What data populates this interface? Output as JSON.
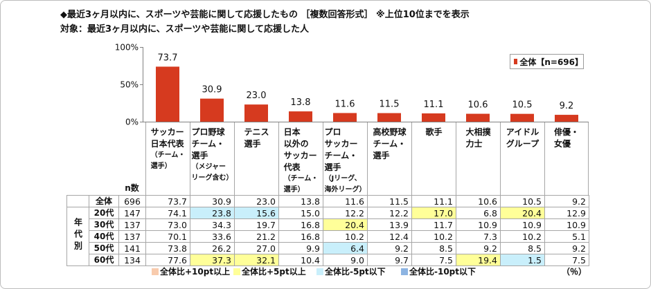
{
  "title": "◆最近3ヶ月以内に、スポーツや芸能に関して応援したもの ［複数回答形式］ ※上位10位までを表示",
  "subtitle": "対象：最近3ヶ月以内に、スポーツや芸能に関して応援した人",
  "chart_data": {
    "type": "bar",
    "categories": [
      "サッカー\n日本代表",
      "プロ野球\nチーム・\n選手",
      "テニス\n選手",
      "日本\n以外の\nサッカー\n代表",
      "プロ\nサッカー\nチーム・\n選手",
      "高校野球\nチーム・\n選手",
      "歌手",
      "大相撲\n力士",
      "アイドル\nグループ",
      "俳優・\n女優"
    ],
    "category_notes": [
      "（チーム・\n選手）",
      "（メジャー\nリーグ含む）",
      "",
      "（チーム・\n選手）",
      "（Jリーグ、\n海外リーグ）",
      "",
      "",
      "",
      "",
      ""
    ],
    "series": [
      {
        "name": "全体【n=696】",
        "color": "#d63a1f",
        "values": [
          73.7,
          30.9,
          23.0,
          13.8,
          11.6,
          11.5,
          11.1,
          10.6,
          10.5,
          9.2
        ]
      }
    ],
    "y_ticks": [
      {
        "value": 100,
        "label": "100%"
      },
      {
        "value": 50,
        "label": "50%"
      },
      {
        "value": 0,
        "label": "0%"
      }
    ],
    "ylim": [
      0,
      100
    ],
    "legend_position": "top-right",
    "grid": false
  },
  "table": {
    "n_header": "n数",
    "group_label": "年代別",
    "total_row": {
      "label": "全体",
      "n": 696,
      "values": [
        "73.7",
        "30.9",
        "23.0",
        "13.8",
        "11.6",
        "11.5",
        "11.1",
        "10.6",
        "10.5",
        "9.2"
      ]
    },
    "age_rows": [
      {
        "label": "20代",
        "n": 147,
        "values": [
          "74.1",
          "23.8",
          "15.6",
          "15.0",
          "12.2",
          "12.2",
          "17.0",
          "6.8",
          "20.4",
          "12.9"
        ]
      },
      {
        "label": "30代",
        "n": 137,
        "values": [
          "73.0",
          "34.3",
          "19.7",
          "16.8",
          "20.4",
          "13.9",
          "11.7",
          "10.9",
          "10.9",
          "10.9"
        ]
      },
      {
        "label": "40代",
        "n": 137,
        "values": [
          "70.1",
          "33.6",
          "21.2",
          "16.8",
          "10.2",
          "12.4",
          "10.2",
          "7.3",
          "10.2",
          "5.1"
        ]
      },
      {
        "label": "50代",
        "n": 141,
        "values": [
          "73.8",
          "26.2",
          "27.0",
          "9.9",
          "6.4",
          "9.2",
          "8.5",
          "9.2",
          "8.5",
          "9.2"
        ]
      },
      {
        "label": "60代",
        "n": 134,
        "values": [
          "77.6",
          "37.3",
          "32.1",
          "10.4",
          "9.0",
          "9.7",
          "7.5",
          "19.4",
          "1.5",
          "7.5"
        ]
      }
    ]
  },
  "highlight_legend": [
    {
      "label": "全体比+10pt以上",
      "color": "#f8cbad"
    },
    {
      "label": "全体比+5pt以上",
      "color": "#ffff99"
    },
    {
      "label": "全体比-5pt以下",
      "color": "#c9effb"
    },
    {
      "label": "全体比-10pt以下",
      "color": "#8db4e2"
    }
  ],
  "unit_label": "（％）"
}
